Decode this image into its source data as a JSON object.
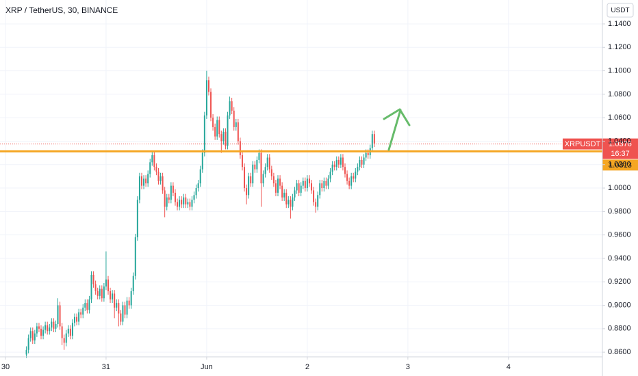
{
  "chart_data": {
    "type": "candlestick",
    "title": "XRP / TetherUS, 30, BINANCE",
    "currency": "USDT",
    "up_color": "#26a69a",
    "down_color": "#ef5350",
    "grid": true,
    "xlim": [
      -1.3,
      142.4
    ],
    "xticks": [
      {
        "value": 0,
        "label": "30"
      },
      {
        "value": 24,
        "label": "31"
      },
      {
        "value": 48,
        "label": "Jun"
      },
      {
        "value": 72,
        "label": "2"
      },
      {
        "value": 96,
        "label": "3"
      },
      {
        "value": 120,
        "label": "4"
      }
    ],
    "ylim": [
      0.856,
      1.1604
    ],
    "yticks": [
      {
        "value": 0.86,
        "label": "0.8600"
      },
      {
        "value": 0.88,
        "label": "0.8800"
      },
      {
        "value": 0.9,
        "label": "0.9000"
      },
      {
        "value": 0.92,
        "label": "0.9200"
      },
      {
        "value": 0.94,
        "label": "0.9400"
      },
      {
        "value": 0.96,
        "label": "0.9600"
      },
      {
        "value": 0.98,
        "label": "0.9800"
      },
      {
        "value": 1.0,
        "label": "1.0000"
      },
      {
        "value": 1.02,
        "label": "1.0200"
      },
      {
        "value": 1.04,
        "label": "1.0400"
      },
      {
        "value": 1.06,
        "label": "1.0600"
      },
      {
        "value": 1.08,
        "label": "1.0800"
      },
      {
        "value": 1.1,
        "label": "1.1000"
      },
      {
        "value": 1.12,
        "label": "1.1200"
      },
      {
        "value": 1.14,
        "label": "1.1400"
      }
    ],
    "level": {
      "value": 1.0313,
      "label": "1.0313",
      "color": "#f5a623"
    },
    "last_price": {
      "symbol": "XRPUSDT",
      "value": 1.0376,
      "label": "1.0376",
      "countdown": "16:37",
      "color": "#ef5350"
    },
    "x": [
      5,
      5.5,
      6,
      6.5,
      7,
      7.5,
      8,
      8.5,
      9,
      9.5,
      10,
      10.5,
      11,
      11.5,
      12,
      12.5,
      13,
      13.5,
      14,
      14.5,
      15,
      15.5,
      16,
      16.5,
      17,
      17.5,
      18,
      18.5,
      19,
      19.5,
      20,
      20.5,
      21,
      21.5,
      22,
      22.5,
      23,
      23.5,
      24,
      24.5,
      25,
      25.5,
      26,
      26.5,
      27,
      27.5,
      28,
      28.5,
      29,
      29.5,
      30,
      30.5,
      31,
      31.5,
      32,
      32.5,
      33,
      33.5,
      34,
      34.5,
      35,
      35.5,
      36,
      36.5,
      37,
      37.5,
      38,
      38.5,
      39,
      39.5,
      40,
      40.5,
      41,
      41.5,
      42,
      42.5,
      43,
      43.5,
      44,
      44.5,
      45,
      45.5,
      46,
      46.5,
      47,
      47.5,
      48,
      48.5,
      49,
      49.5,
      50,
      50.5,
      51,
      51.5,
      52,
      52.5,
      53,
      53.5,
      54,
      54.5,
      55,
      55.5,
      56,
      56.5,
      57,
      57.5,
      58,
      58.5,
      59,
      59.5,
      60,
      60.5,
      61,
      61.5,
      62,
      62.5,
      63,
      63.5,
      64,
      64.5,
      65,
      65.5,
      66,
      66.5,
      67,
      67.5,
      68,
      68.5,
      69,
      69.5,
      70,
      70.5,
      71,
      71.5,
      72,
      72.5,
      73,
      73.5,
      74,
      74.5,
      75,
      75.5,
      76,
      76.5,
      77,
      77.5,
      78,
      78.5,
      79,
      79.5,
      80,
      80.5,
      81,
      81.5,
      82,
      82.5,
      83,
      83.5,
      84,
      84.5,
      85,
      85.5,
      86,
      86.5,
      87,
      87.5,
      88
    ],
    "open": [
      0.858,
      0.862,
      0.872,
      0.878,
      0.87,
      0.876,
      0.882,
      0.88,
      0.874,
      0.879,
      0.883,
      0.878,
      0.881,
      0.886,
      0.88,
      0.884,
      0.9,
      0.882,
      0.872,
      0.868,
      0.876,
      0.88,
      0.874,
      0.885,
      0.89,
      0.886,
      0.894,
      0.892,
      0.898,
      0.902,
      0.896,
      0.905,
      0.926,
      0.918,
      0.912,
      0.908,
      0.914,
      0.906,
      0.916,
      0.922,
      0.912,
      0.905,
      0.91,
      0.898,
      0.902,
      0.893,
      0.886,
      0.9,
      0.892,
      0.904,
      0.9,
      0.912,
      0.925,
      0.958,
      0.99,
      1.01,
      1.002,
      1.008,
      1.004,
      1.012,
      1.022,
      1.028,
      1.018,
      1.014,
      1.006,
      1.01,
      0.998,
      0.984,
      0.992,
      0.99,
      1.002,
      0.996,
      0.988,
      0.984,
      0.99,
      0.986,
      0.992,
      0.986,
      0.988,
      0.984,
      0.99,
      0.994,
      1.0,
      1.004,
      1.016,
      1.03,
      1.062,
      1.092,
      1.082,
      1.06,
      1.052,
      1.044,
      1.058,
      1.046,
      1.04,
      1.048,
      1.036,
      1.062,
      1.074,
      1.066,
      1.052,
      1.056,
      1.04,
      1.028,
      1.018,
      1.0,
      0.994,
      1.01,
      1.004,
      1.02,
      1.016,
      1.024,
      1.03,
      1.004,
      1.012,
      1.018,
      1.026,
      1.016,
      1.01,
      1.004,
      0.996,
      1.008,
      1.002,
      0.992,
      0.996,
      0.986,
      0.99,
      0.984,
      0.992,
      0.998,
      1.004,
      0.996,
      1.002,
      1.006,
      1.0,
      1.008,
      1.004,
      0.998,
      0.988,
      0.984,
      0.994,
      1.004,
      1.0,
      1.006,
      1.002,
      1.008,
      1.014,
      1.02,
      1.018,
      1.024,
      1.02,
      1.026,
      1.018,
      1.012,
      1.006,
      1.002,
      1.01,
      1.008,
      1.014,
      1.018,
      1.024,
      1.02,
      1.026,
      1.03,
      1.028,
      1.034,
      1.046
    ],
    "high": [
      0.865,
      0.875,
      0.881,
      0.881,
      0.879,
      0.885,
      0.885,
      0.883,
      0.882,
      0.886,
      0.886,
      0.884,
      0.889,
      0.889,
      0.887,
      0.906,
      0.903,
      0.885,
      0.875,
      0.879,
      0.883,
      0.883,
      0.888,
      0.893,
      0.893,
      0.897,
      0.897,
      0.901,
      0.905,
      0.905,
      0.908,
      0.929,
      0.929,
      0.921,
      0.915,
      0.917,
      0.917,
      0.919,
      0.946,
      0.925,
      0.915,
      0.913,
      0.913,
      0.905,
      0.905,
      0.896,
      0.903,
      0.903,
      0.907,
      0.907,
      0.915,
      0.928,
      0.961,
      0.993,
      1.013,
      1.013,
      1.011,
      1.011,
      1.015,
      1.025,
      1.031,
      1.031,
      1.021,
      1.017,
      1.013,
      1.013,
      1.001,
      0.995,
      0.995,
      1.005,
      1.005,
      0.999,
      0.991,
      0.993,
      0.993,
      0.995,
      0.995,
      0.991,
      0.991,
      0.993,
      0.997,
      1.003,
      1.007,
      1.019,
      1.033,
      1.065,
      1.1,
      1.095,
      1.085,
      1.063,
      1.055,
      1.061,
      1.061,
      1.049,
      1.051,
      1.051,
      1.065,
      1.078,
      1.077,
      1.069,
      1.059,
      1.059,
      1.043,
      1.031,
      1.021,
      1.003,
      1.013,
      1.013,
      1.023,
      1.023,
      1.027,
      1.033,
      1.033,
      1.015,
      1.021,
      1.029,
      1.029,
      1.019,
      1.013,
      1.007,
      1.011,
      1.011,
      1.005,
      0.999,
      0.999,
      0.993,
      0.993,
      0.995,
      1.001,
      1.007,
      1.007,
      1.005,
      1.009,
      1.009,
      1.011,
      1.011,
      1.007,
      1.001,
      0.991,
      0.997,
      1.007,
      1.007,
      1.009,
      1.009,
      1.011,
      1.017,
      1.023,
      1.023,
      1.027,
      1.027,
      1.029,
      1.029,
      1.021,
      1.015,
      1.009,
      1.013,
      1.013,
      1.017,
      1.021,
      1.027,
      1.027,
      1.029,
      1.033,
      1.033,
      1.037,
      1.049,
      1.049
    ],
    "low": [
      0.855,
      0.859,
      0.869,
      0.867,
      0.867,
      0.873,
      0.877,
      0.871,
      0.871,
      0.876,
      0.875,
      0.875,
      0.878,
      0.877,
      0.877,
      0.881,
      0.879,
      0.866,
      0.862,
      0.865,
      0.873,
      0.871,
      0.871,
      0.882,
      0.883,
      0.883,
      0.889,
      0.889,
      0.895,
      0.893,
      0.893,
      0.902,
      0.915,
      0.909,
      0.905,
      0.905,
      0.903,
      0.903,
      0.913,
      0.909,
      0.902,
      0.902,
      0.889,
      0.895,
      0.882,
      0.883,
      0.883,
      0.889,
      0.889,
      0.897,
      0.897,
      0.909,
      0.922,
      0.955,
      0.987,
      0.999,
      0.999,
      1.001,
      1.001,
      1.009,
      1.019,
      1.015,
      1.011,
      1.003,
      1.003,
      0.995,
      0.975,
      0.981,
      0.987,
      0.987,
      0.993,
      0.985,
      0.981,
      0.981,
      0.983,
      0.983,
      0.983,
      0.983,
      0.981,
      0.981,
      0.987,
      0.991,
      0.997,
      1.001,
      1.013,
      1.027,
      1.059,
      1.079,
      1.057,
      1.049,
      1.041,
      1.041,
      1.043,
      1.03,
      1.037,
      1.033,
      1.033,
      1.059,
      1.063,
      1.049,
      1.049,
      1.037,
      1.025,
      1.015,
      0.997,
      0.986,
      0.991,
      1.001,
      1.001,
      1.013,
      1.013,
      1.021,
      0.984,
      1.001,
      1.009,
      1.015,
      1.013,
      1.007,
      1.001,
      0.993,
      0.993,
      0.999,
      0.989,
      0.989,
      0.983,
      0.983,
      0.974,
      0.981,
      0.989,
      0.995,
      0.993,
      0.993,
      0.999,
      0.997,
      0.997,
      1.001,
      0.995,
      0.985,
      0.979,
      0.981,
      0.991,
      0.997,
      0.997,
      0.999,
      0.999,
      1.005,
      1.011,
      1.015,
      1.015,
      1.017,
      1.017,
      1.015,
      1.009,
      1.003,
      0.999,
      0.999,
      1.005,
      1.005,
      1.011,
      1.015,
      1.017,
      1.017,
      1.023,
      1.025,
      1.025,
      1.031,
      1.035
    ],
    "close": [
      0.862,
      0.872,
      0.878,
      0.87,
      0.876,
      0.882,
      0.88,
      0.874,
      0.879,
      0.883,
      0.878,
      0.881,
      0.886,
      0.88,
      0.884,
      0.9,
      0.882,
      0.872,
      0.868,
      0.876,
      0.88,
      0.874,
      0.885,
      0.89,
      0.886,
      0.894,
      0.892,
      0.898,
      0.902,
      0.896,
      0.905,
      0.926,
      0.918,
      0.912,
      0.908,
      0.914,
      0.906,
      0.916,
      0.922,
      0.912,
      0.905,
      0.91,
      0.898,
      0.902,
      0.893,
      0.886,
      0.9,
      0.892,
      0.904,
      0.9,
      0.912,
      0.925,
      0.958,
      0.99,
      1.01,
      1.002,
      1.008,
      1.004,
      1.012,
      1.022,
      1.028,
      1.018,
      1.014,
      1.006,
      1.01,
      0.998,
      0.984,
      0.992,
      0.99,
      1.002,
      0.996,
      0.988,
      0.984,
      0.99,
      0.986,
      0.992,
      0.986,
      0.988,
      0.984,
      0.99,
      0.994,
      1.0,
      1.004,
      1.016,
      1.03,
      1.062,
      1.092,
      1.082,
      1.06,
      1.052,
      1.044,
      1.058,
      1.046,
      1.04,
      1.048,
      1.036,
      1.062,
      1.074,
      1.066,
      1.052,
      1.056,
      1.04,
      1.028,
      1.018,
      1.0,
      0.994,
      1.01,
      1.004,
      1.02,
      1.016,
      1.024,
      1.03,
      1.004,
      1.012,
      1.018,
      1.026,
      1.016,
      1.01,
      1.004,
      0.996,
      1.008,
      1.002,
      0.992,
      0.996,
      0.986,
      0.99,
      0.984,
      0.992,
      0.998,
      1.004,
      0.996,
      1.002,
      1.006,
      1.0,
      1.008,
      1.004,
      0.998,
      0.988,
      0.984,
      0.994,
      1.004,
      1.0,
      1.006,
      1.002,
      1.008,
      1.014,
      1.02,
      1.018,
      1.024,
      1.02,
      1.026,
      1.018,
      1.012,
      1.006,
      1.002,
      1.01,
      1.008,
      1.014,
      1.018,
      1.024,
      1.02,
      1.026,
      1.03,
      1.028,
      1.034,
      1.046,
      1.038
    ]
  }
}
